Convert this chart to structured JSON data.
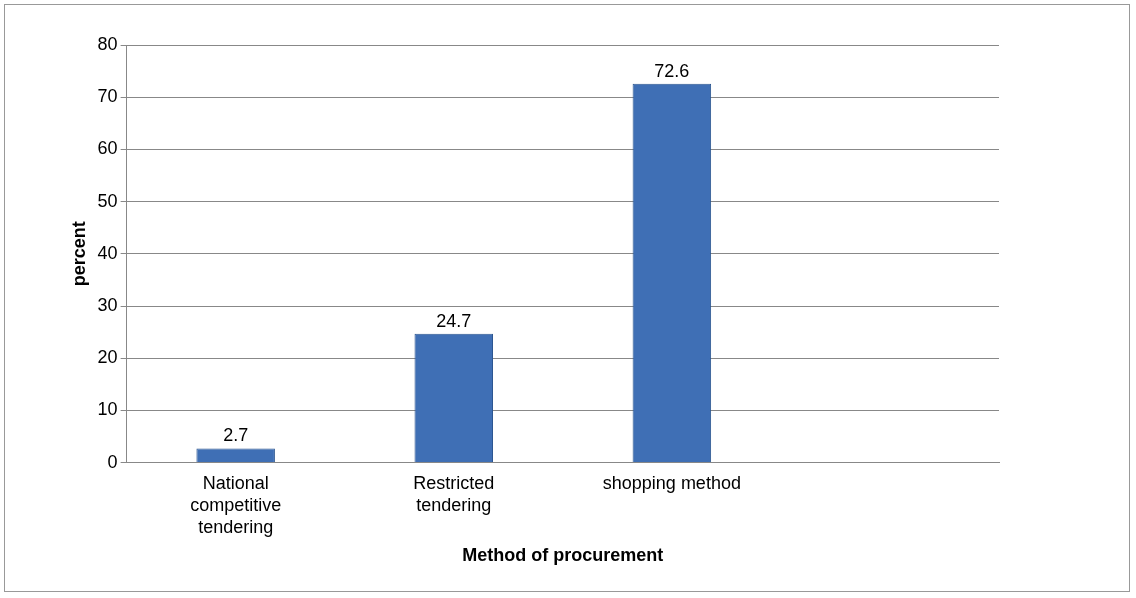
{
  "chart_data": {
    "type": "bar",
    "xlabel": "Method of procurement",
    "ylabel": "percent",
    "categories": [
      "National competitive tendering",
      "Restricted tendering",
      "shopping method",
      null
    ],
    "values": [
      2.7,
      24.7,
      72.6,
      null
    ],
    "color": "#3f6fb5",
    "ylim": [
      0,
      80
    ],
    "yticks": [
      0,
      10,
      20,
      30,
      40,
      50,
      60,
      70,
      80
    ],
    "grid": "y",
    "data_labels": true
  }
}
